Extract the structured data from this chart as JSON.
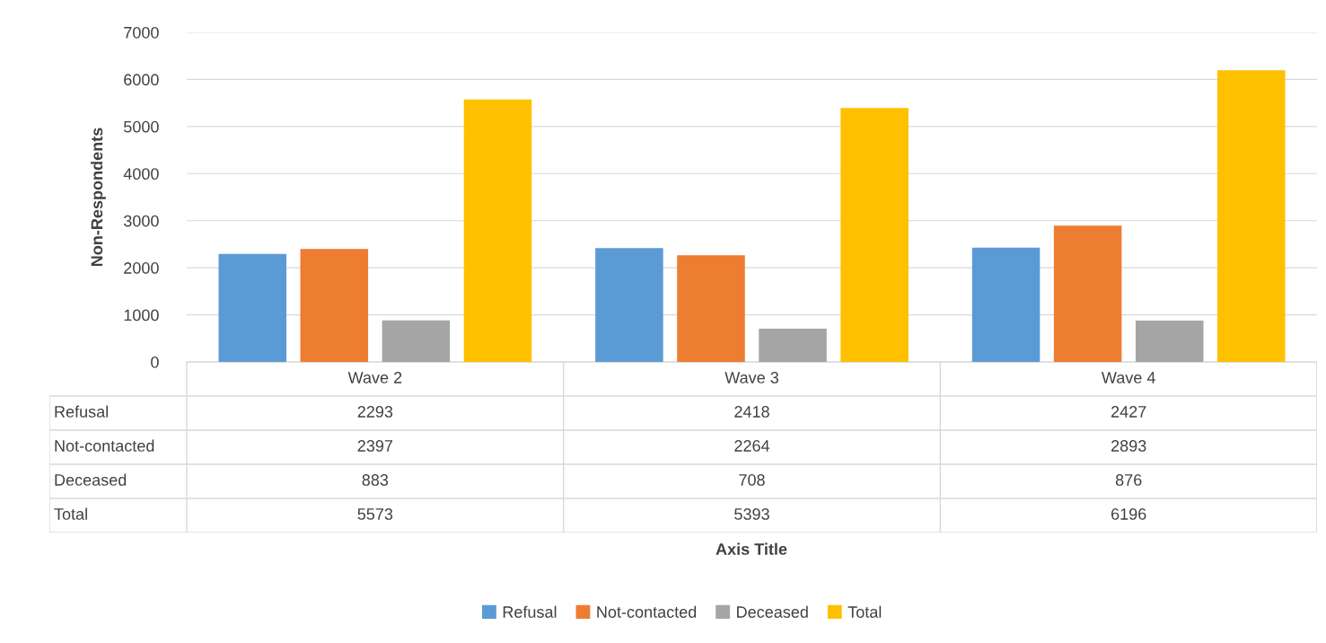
{
  "chart_data": {
    "type": "bar",
    "annotations": [
      "Axis Title"
    ],
    "ylabel": "Non-Respondents",
    "categories": [
      "Wave 2",
      "Wave 3",
      "Wave 4"
    ],
    "series": [
      {
        "name": "Refusal",
        "color": "#5b9bd5",
        "values": [
          2293,
          2418,
          2427
        ]
      },
      {
        "name": "Not-contacted",
        "color": "#ed7d31",
        "values": [
          2397,
          2264,
          2893
        ]
      },
      {
        "name": "Deceased",
        "color": "#a5a5a5",
        "values": [
          883,
          708,
          876
        ]
      },
      {
        "name": "Total",
        "color": "#ffc000",
        "values": [
          5573,
          5393,
          6196
        ]
      }
    ],
    "ylim": [
      0,
      7000
    ],
    "yticks": [
      0,
      1000,
      2000,
      3000,
      4000,
      5000,
      6000,
      7000
    ],
    "grid": "y",
    "legend": "bottom",
    "data_labels": true
  }
}
